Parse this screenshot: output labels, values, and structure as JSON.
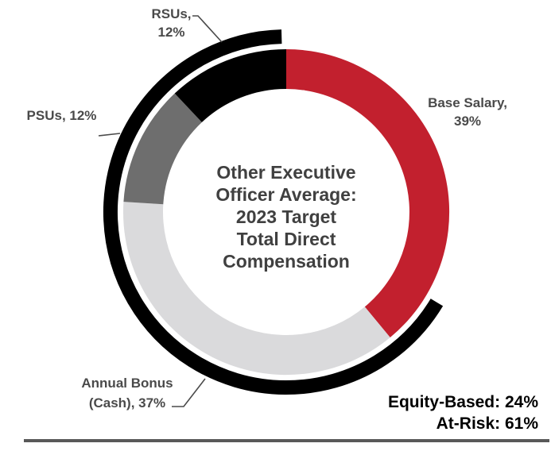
{
  "chart_data": {
    "type": "pie",
    "subtype": "donut",
    "title": "Other Executive Officer Average: 2023 Target Total Direct Compensation",
    "center_lines": [
      "Other Executive",
      "Officer Average:",
      "2023 Target",
      "Total Direct",
      "Compensation"
    ],
    "start": "top",
    "direction": "clockwise",
    "legend_position": "labels-around-donut",
    "segments": [
      {
        "name": "Base Salary",
        "value": 39,
        "color": "#c2202e",
        "label_line1": "Base Salary,",
        "label_line2": "39%"
      },
      {
        "name": "Annual Bonus (Cash)",
        "value": 37,
        "color": "#dadadc",
        "label_line1": "Annual Bonus",
        "label_line2": "(Cash), 37%"
      },
      {
        "name": "PSUs",
        "value": 12,
        "color": "#6e6e6e",
        "label": "PSUs, 12%"
      },
      {
        "name": "RSUs",
        "value": 12,
        "color": "#000000",
        "label_line1": "RSUs,",
        "label_line2": "12%"
      }
    ],
    "at_risk_arc": {
      "color": "#000000",
      "start_deg": 121,
      "end_deg": 358.5,
      "represents": "At-Risk: 61%"
    },
    "summary": {
      "equity_based": "Equity-Based: 24%",
      "at_risk": "At-Risk: 61%"
    }
  },
  "colors": {
    "label_text": "#4a4a4a",
    "center_text": "#404040",
    "summary_text": "#000000",
    "divider": "#595959",
    "background": "#ffffff"
  }
}
